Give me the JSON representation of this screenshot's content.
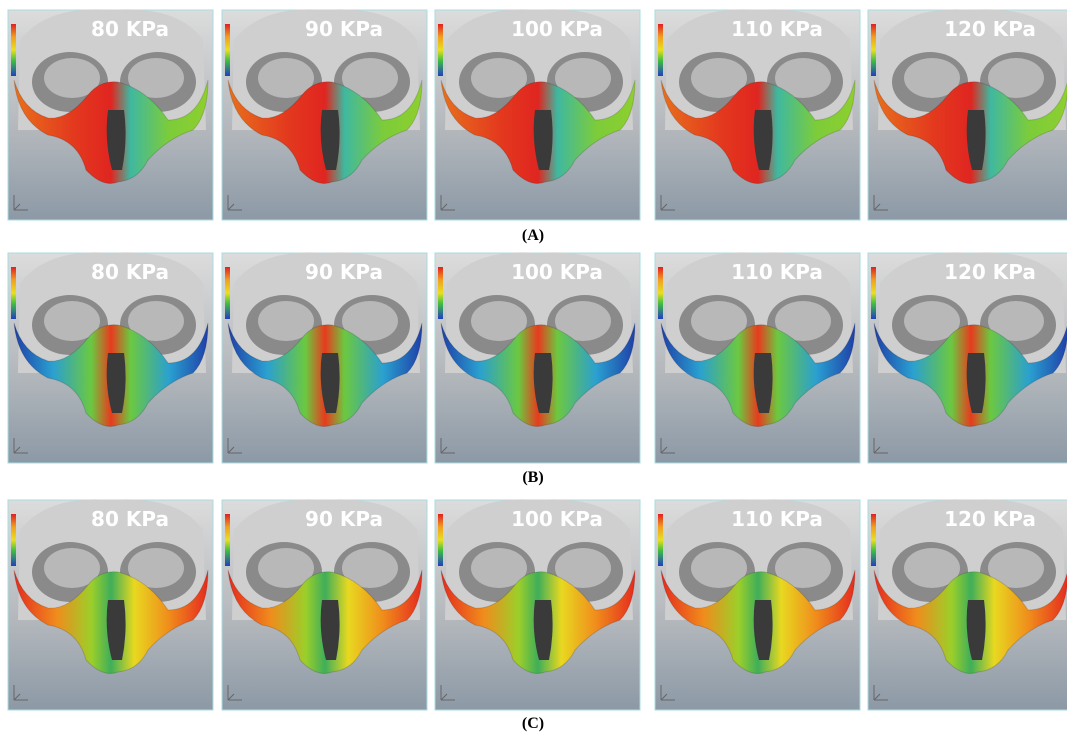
{
  "rows": [
    {
      "caption": "(A)",
      "panels": [
        {
          "label": "80 KPa"
        },
        {
          "label": "90 KPa"
        },
        {
          "label": "100 KPa"
        },
        {
          "label": "110 KPa"
        },
        {
          "label": "120 KPa"
        }
      ]
    },
    {
      "caption": "(B)",
      "panels": [
        {
          "label": "80 KPa"
        },
        {
          "label": "90 KPa"
        },
        {
          "label": "100 KPa"
        },
        {
          "label": "110 KPa"
        },
        {
          "label": "120 KPa"
        }
      ]
    },
    {
      "caption": "(C)",
      "panels": [
        {
          "label": "80 KPa"
        },
        {
          "label": "90 KPa"
        },
        {
          "label": "100 KPa"
        },
        {
          "label": "110 KPa"
        },
        {
          "label": "120 KPa"
        }
      ]
    }
  ]
}
